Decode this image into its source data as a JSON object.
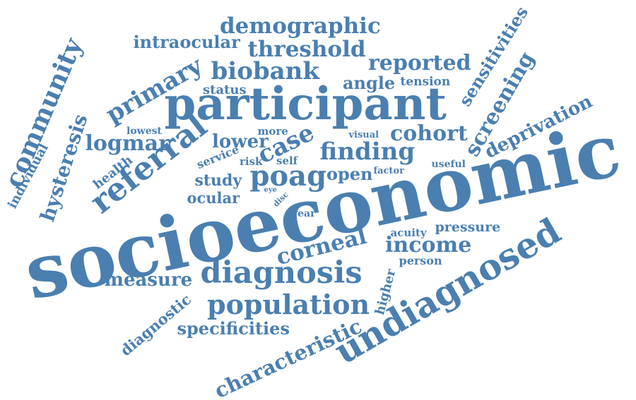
{
  "color": "#4a7fb0",
  "words": [
    {
      "text": "socioeconomic"
    },
    {
      "text": "participant"
    },
    {
      "text": "undiagnosed"
    },
    {
      "text": "diagnosis"
    },
    {
      "text": "population"
    },
    {
      "text": "referral"
    },
    {
      "text": "community"
    },
    {
      "text": "demographic"
    },
    {
      "text": "threshold"
    },
    {
      "text": "biobank"
    },
    {
      "text": "primary"
    },
    {
      "text": "intraocular"
    },
    {
      "text": "reported"
    },
    {
      "text": "angle"
    },
    {
      "text": "tension"
    },
    {
      "text": "sensitivities"
    },
    {
      "text": "screening"
    },
    {
      "text": "deprivation"
    },
    {
      "text": "hysteresis"
    },
    {
      "text": "individual"
    },
    {
      "text": "logmar"
    },
    {
      "text": "status"
    },
    {
      "text": "lowest"
    },
    {
      "text": "more"
    },
    {
      "text": "visual"
    },
    {
      "text": "lower"
    },
    {
      "text": "case"
    },
    {
      "text": "cohort"
    },
    {
      "text": "finding"
    },
    {
      "text": "health"
    },
    {
      "text": "service"
    },
    {
      "text": "risk"
    },
    {
      "text": "self"
    },
    {
      "text": "useful"
    },
    {
      "text": "factor"
    },
    {
      "text": "study"
    },
    {
      "text": "poag"
    },
    {
      "text": "open"
    },
    {
      "text": "ocular"
    },
    {
      "text": "eye"
    },
    {
      "text": "disc"
    },
    {
      "text": "year"
    },
    {
      "text": "acuity"
    },
    {
      "text": "pressure"
    },
    {
      "text": "corneal"
    },
    {
      "text": "income"
    },
    {
      "text": "person"
    },
    {
      "text": "measure"
    },
    {
      "text": "higher"
    },
    {
      "text": "diagnostic"
    },
    {
      "text": "specificities"
    },
    {
      "text": "characteristic"
    }
  ]
}
